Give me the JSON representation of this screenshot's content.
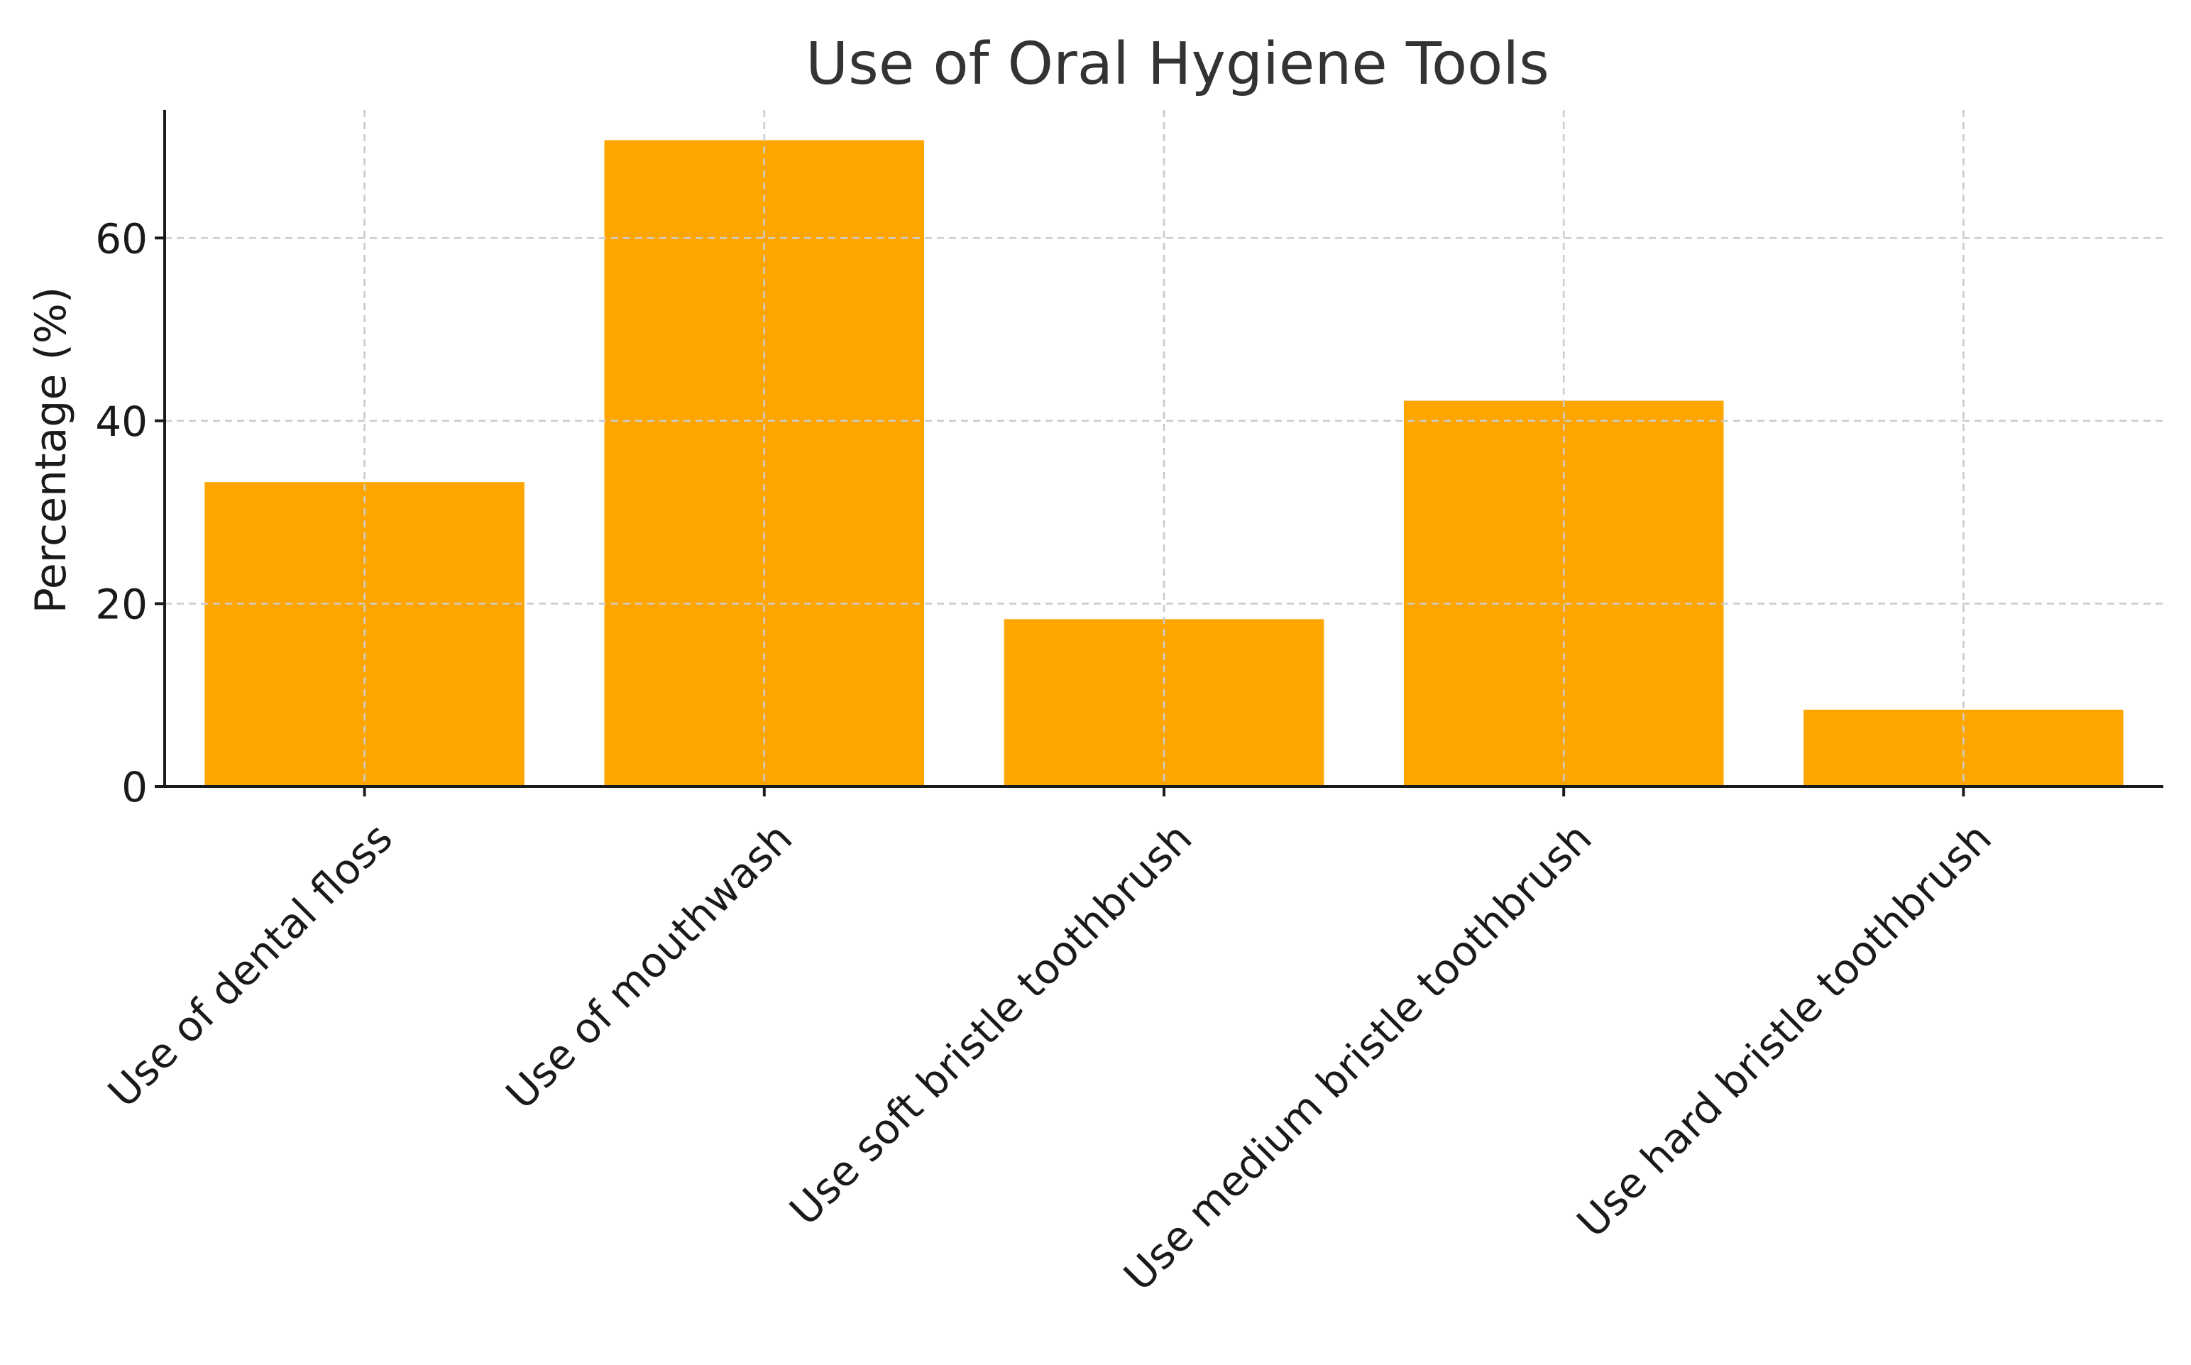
{
  "chart_data": {
    "type": "bar",
    "title": "Use of Oral Hygiene Tools",
    "xlabel": "",
    "ylabel": "Percentage (%)",
    "categories": [
      "Use of dental floss",
      "Use of mouthwash",
      "Use soft bristle toothbrush",
      "Use medium bristle toothbrush",
      "Use hard bristle toothbrush"
    ],
    "values": [
      33.3,
      70.7,
      18.3,
      42.2,
      8.4
    ],
    "ylim": [
      0,
      74
    ],
    "yticks": [
      0,
      20,
      40,
      60
    ],
    "grid": true,
    "bar_color": "#FFA500",
    "legend": "none"
  }
}
